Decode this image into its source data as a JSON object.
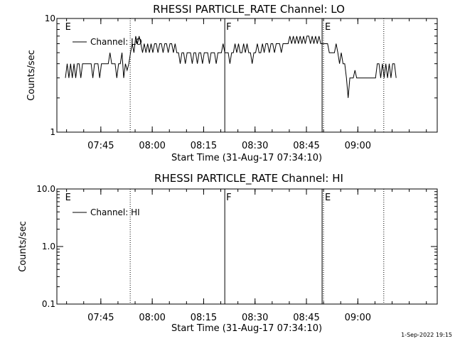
{
  "footer": {
    "datestamp": "1-Sep-2022 19:15"
  },
  "chart_data": [
    {
      "type": "line",
      "title": "RHESSI PARTICLE_RATE Channel: LO",
      "xlabel": "Start Time (31-Aug-17 07:34:10)",
      "ylabel": "Counts/sec",
      "x_unit": "minutes since 07:34:10",
      "yscale": "log",
      "ylim": [
        1,
        10
      ],
      "y_ticks": [
        "1",
        "10"
      ],
      "x_ticks": [
        "07:45",
        "08:00",
        "08:15",
        "08:30",
        "08:45",
        "09:00"
      ],
      "legend": {
        "placement": "top-left",
        "entries": [
          "Channel: LO"
        ]
      },
      "series": [
        {
          "name": "Channel: LO",
          "points": [
            [
              0.5,
              3
            ],
            [
              1,
              4
            ],
            [
              1.5,
              3
            ],
            [
              2,
              4
            ],
            [
              2.5,
              3
            ],
            [
              3,
              4
            ],
            [
              3.5,
              3
            ],
            [
              4,
              4
            ],
            [
              4.5,
              4
            ],
            [
              5,
              3
            ],
            [
              5.5,
              4
            ],
            [
              6,
              4
            ],
            [
              6.5,
              4
            ],
            [
              7,
              4
            ],
            [
              7.5,
              4
            ],
            [
              8,
              4
            ],
            [
              8.5,
              3
            ],
            [
              9,
              4
            ],
            [
              9.5,
              4
            ],
            [
              10,
              4
            ],
            [
              10.5,
              3
            ],
            [
              11,
              4
            ],
            [
              11.5,
              4
            ],
            [
              12,
              4
            ],
            [
              12.5,
              4
            ],
            [
              13,
              4
            ],
            [
              13.5,
              5
            ],
            [
              14,
              4
            ],
            [
              14.5,
              4
            ],
            [
              15,
              4
            ],
            [
              15.5,
              3
            ],
            [
              16,
              4
            ],
            [
              16.5,
              4
            ],
            [
              17,
              5
            ],
            [
              17.5,
              3
            ],
            [
              18,
              4
            ],
            [
              18.5,
              3.5
            ],
            [
              19,
              4
            ],
            [
              19.5,
              5
            ],
            [
              20,
              6
            ],
            [
              20.5,
              5
            ],
            [
              21,
              7
            ],
            [
              21.5,
              6
            ],
            [
              22,
              7
            ],
            [
              22.5,
              6
            ],
            [
              23,
              5
            ],
            [
              23.5,
              6
            ],
            [
              24,
              5
            ],
            [
              24.5,
              6
            ],
            [
              25,
              5
            ],
            [
              25.5,
              6
            ],
            [
              26,
              5
            ],
            [
              26.5,
              6
            ],
            [
              27,
              6
            ],
            [
              27.5,
              5
            ],
            [
              28,
              6
            ],
            [
              28.5,
              6
            ],
            [
              29,
              5
            ],
            [
              29.5,
              6
            ],
            [
              30,
              6
            ],
            [
              30.5,
              5
            ],
            [
              31,
              6
            ],
            [
              31.5,
              6
            ],
            [
              32,
              5
            ],
            [
              32.5,
              6
            ],
            [
              33,
              5
            ],
            [
              33.5,
              5
            ],
            [
              34,
              4
            ],
            [
              34.5,
              5
            ],
            [
              35,
              5
            ],
            [
              35.5,
              4
            ],
            [
              36,
              5
            ],
            [
              36.5,
              5
            ],
            [
              37,
              5
            ],
            [
              37.5,
              4
            ],
            [
              38,
              5
            ],
            [
              38.5,
              5
            ],
            [
              39,
              4
            ],
            [
              39.5,
              5
            ],
            [
              40,
              5
            ],
            [
              40.5,
              4
            ],
            [
              41,
              5
            ],
            [
              41.5,
              5
            ],
            [
              42,
              5
            ],
            [
              42.5,
              4
            ],
            [
              43,
              5
            ],
            [
              43.5,
              5
            ],
            [
              44,
              5
            ],
            [
              44.5,
              4
            ],
            [
              45,
              5
            ],
            [
              45.5,
              5
            ],
            [
              46,
              5
            ],
            [
              46.5,
              6
            ],
            [
              47,
              5
            ],
            [
              47.5,
              5
            ],
            [
              48,
              5
            ],
            [
              48.5,
              4
            ],
            [
              49,
              5
            ],
            [
              49.5,
              5
            ],
            [
              50,
              6
            ],
            [
              50.5,
              5
            ],
            [
              51,
              6
            ],
            [
              51.5,
              5
            ],
            [
              52,
              5
            ],
            [
              52.5,
              6
            ],
            [
              53,
              5
            ],
            [
              53.5,
              6
            ],
            [
              54,
              5
            ],
            [
              54.5,
              5
            ],
            [
              55,
              4
            ],
            [
              55.5,
              5
            ],
            [
              56,
              5
            ],
            [
              56.5,
              6
            ],
            [
              57,
              5
            ],
            [
              57.5,
              5
            ],
            [
              58,
              6
            ],
            [
              58.5,
              5
            ],
            [
              59,
              6
            ],
            [
              59.5,
              6
            ],
            [
              60,
              5
            ],
            [
              60.5,
              6
            ],
            [
              61,
              6
            ],
            [
              61.5,
              5
            ],
            [
              62,
              6
            ],
            [
              62.5,
              6
            ],
            [
              63,
              6
            ],
            [
              63.5,
              5
            ],
            [
              64,
              6
            ],
            [
              64.5,
              6
            ],
            [
              65,
              6
            ],
            [
              65.5,
              6
            ],
            [
              66,
              7
            ],
            [
              66.5,
              6
            ],
            [
              67,
              7
            ],
            [
              67.5,
              6
            ],
            [
              68,
              7
            ],
            [
              68.5,
              6
            ],
            [
              69,
              7
            ],
            [
              69.5,
              6
            ],
            [
              70,
              7
            ],
            [
              70.5,
              6
            ],
            [
              71,
              7
            ],
            [
              71.5,
              7
            ],
            [
              72,
              6
            ],
            [
              72.5,
              7
            ],
            [
              73,
              6
            ],
            [
              73.5,
              7
            ],
            [
              74,
              6
            ],
            [
              74.5,
              7
            ],
            [
              75,
              6
            ],
            [
              75.5,
              6
            ],
            [
              76,
              6
            ],
            [
              76.5,
              6
            ],
            [
              77,
              6
            ],
            [
              77.5,
              5
            ],
            [
              78,
              5
            ],
            [
              78.5,
              5
            ],
            [
              79,
              5
            ],
            [
              79.5,
              6
            ],
            [
              80,
              5
            ],
            [
              80.5,
              4
            ],
            [
              81,
              5
            ],
            [
              81.5,
              4
            ],
            [
              82,
              4
            ],
            [
              82.5,
              3
            ],
            [
              83,
              2
            ],
            [
              83.5,
              3
            ],
            [
              84,
              3
            ],
            [
              84.5,
              3
            ],
            [
              85,
              3.5
            ],
            [
              85.5,
              3
            ],
            [
              86,
              3
            ],
            [
              86.5,
              3
            ],
            [
              87,
              3
            ],
            [
              87.5,
              3
            ],
            [
              88,
              3
            ],
            [
              88.5,
              3
            ],
            [
              89,
              3
            ],
            [
              89.5,
              3
            ],
            [
              90,
              3
            ],
            [
              90.5,
              3
            ],
            [
              91,
              3
            ],
            [
              91.5,
              4
            ],
            [
              92,
              4
            ],
            [
              92.5,
              3
            ],
            [
              93,
              4
            ],
            [
              93.5,
              3
            ],
            [
              94,
              4
            ],
            [
              94.5,
              3
            ],
            [
              95,
              4
            ],
            [
              95.5,
              3
            ],
            [
              96,
              4
            ],
            [
              96.5,
              4
            ],
            [
              97,
              3
            ]
          ]
        }
      ]
    },
    {
      "type": "line",
      "title": "RHESSI PARTICLE_RATE Channel: HI",
      "xlabel": "Start Time (31-Aug-17 07:34:10)",
      "ylabel": "Counts/sec",
      "x_unit": "minutes since 07:34:10",
      "yscale": "log",
      "ylim": [
        0.1,
        10
      ],
      "y_ticks": [
        "0.1",
        "1.0",
        "10.0"
      ],
      "x_ticks": [
        "07:45",
        "08:00",
        "08:15",
        "08:30",
        "08:45",
        "09:00"
      ],
      "legend": {
        "placement": "top-left",
        "entries": [
          "Channel: HI"
        ]
      },
      "series": [
        {
          "name": "Channel: HI",
          "points": []
        }
      ]
    }
  ],
  "event_markers": [
    {
      "label": "E",
      "x": 0,
      "style": "none"
    },
    {
      "label": "",
      "x": 19.4,
      "style": "dotted"
    },
    {
      "label": "F",
      "x": 47.0,
      "style": "solid"
    },
    {
      "label": "",
      "x": 75.4,
      "style": "solid"
    },
    {
      "label": "E",
      "x": 75.8,
      "style": "dotted"
    },
    {
      "label": "",
      "x": 93.4,
      "style": "dotted"
    }
  ]
}
